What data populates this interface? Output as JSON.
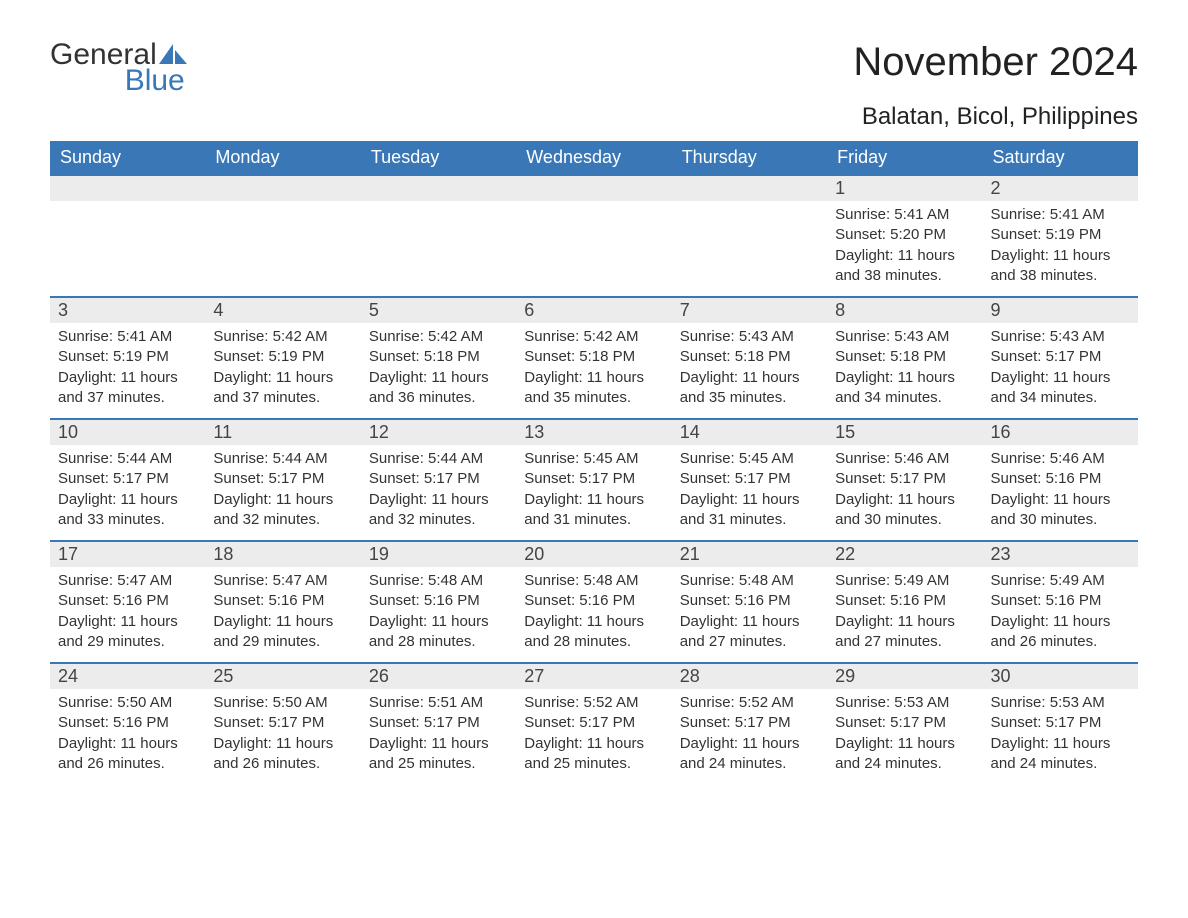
{
  "logo": {
    "word1": "General",
    "word2": "Blue",
    "accent_color": "#3a77b6",
    "text_color": "#333333"
  },
  "title": "November 2024",
  "location": "Balatan, Bicol, Philippines",
  "colors": {
    "header_bg": "#3a77b6",
    "header_text": "#ffffff",
    "daynum_bg": "#ececec",
    "row_border": "#3a77b6",
    "body_text": "#333333",
    "background": "#ffffff"
  },
  "day_headers": [
    "Sunday",
    "Monday",
    "Tuesday",
    "Wednesday",
    "Thursday",
    "Friday",
    "Saturday"
  ],
  "weeks": [
    [
      null,
      null,
      null,
      null,
      null,
      {
        "n": "1",
        "sunrise": "Sunrise: 5:41 AM",
        "sunset": "Sunset: 5:20 PM",
        "daylight": "Daylight: 11 hours and 38 minutes."
      },
      {
        "n": "2",
        "sunrise": "Sunrise: 5:41 AM",
        "sunset": "Sunset: 5:19 PM",
        "daylight": "Daylight: 11 hours and 38 minutes."
      }
    ],
    [
      {
        "n": "3",
        "sunrise": "Sunrise: 5:41 AM",
        "sunset": "Sunset: 5:19 PM",
        "daylight": "Daylight: 11 hours and 37 minutes."
      },
      {
        "n": "4",
        "sunrise": "Sunrise: 5:42 AM",
        "sunset": "Sunset: 5:19 PM",
        "daylight": "Daylight: 11 hours and 37 minutes."
      },
      {
        "n": "5",
        "sunrise": "Sunrise: 5:42 AM",
        "sunset": "Sunset: 5:18 PM",
        "daylight": "Daylight: 11 hours and 36 minutes."
      },
      {
        "n": "6",
        "sunrise": "Sunrise: 5:42 AM",
        "sunset": "Sunset: 5:18 PM",
        "daylight": "Daylight: 11 hours and 35 minutes."
      },
      {
        "n": "7",
        "sunrise": "Sunrise: 5:43 AM",
        "sunset": "Sunset: 5:18 PM",
        "daylight": "Daylight: 11 hours and 35 minutes."
      },
      {
        "n": "8",
        "sunrise": "Sunrise: 5:43 AM",
        "sunset": "Sunset: 5:18 PM",
        "daylight": "Daylight: 11 hours and 34 minutes."
      },
      {
        "n": "9",
        "sunrise": "Sunrise: 5:43 AM",
        "sunset": "Sunset: 5:17 PM",
        "daylight": "Daylight: 11 hours and 34 minutes."
      }
    ],
    [
      {
        "n": "10",
        "sunrise": "Sunrise: 5:44 AM",
        "sunset": "Sunset: 5:17 PM",
        "daylight": "Daylight: 11 hours and 33 minutes."
      },
      {
        "n": "11",
        "sunrise": "Sunrise: 5:44 AM",
        "sunset": "Sunset: 5:17 PM",
        "daylight": "Daylight: 11 hours and 32 minutes."
      },
      {
        "n": "12",
        "sunrise": "Sunrise: 5:44 AM",
        "sunset": "Sunset: 5:17 PM",
        "daylight": "Daylight: 11 hours and 32 minutes."
      },
      {
        "n": "13",
        "sunrise": "Sunrise: 5:45 AM",
        "sunset": "Sunset: 5:17 PM",
        "daylight": "Daylight: 11 hours and 31 minutes."
      },
      {
        "n": "14",
        "sunrise": "Sunrise: 5:45 AM",
        "sunset": "Sunset: 5:17 PM",
        "daylight": "Daylight: 11 hours and 31 minutes."
      },
      {
        "n": "15",
        "sunrise": "Sunrise: 5:46 AM",
        "sunset": "Sunset: 5:17 PM",
        "daylight": "Daylight: 11 hours and 30 minutes."
      },
      {
        "n": "16",
        "sunrise": "Sunrise: 5:46 AM",
        "sunset": "Sunset: 5:16 PM",
        "daylight": "Daylight: 11 hours and 30 minutes."
      }
    ],
    [
      {
        "n": "17",
        "sunrise": "Sunrise: 5:47 AM",
        "sunset": "Sunset: 5:16 PM",
        "daylight": "Daylight: 11 hours and 29 minutes."
      },
      {
        "n": "18",
        "sunrise": "Sunrise: 5:47 AM",
        "sunset": "Sunset: 5:16 PM",
        "daylight": "Daylight: 11 hours and 29 minutes."
      },
      {
        "n": "19",
        "sunrise": "Sunrise: 5:48 AM",
        "sunset": "Sunset: 5:16 PM",
        "daylight": "Daylight: 11 hours and 28 minutes."
      },
      {
        "n": "20",
        "sunrise": "Sunrise: 5:48 AM",
        "sunset": "Sunset: 5:16 PM",
        "daylight": "Daylight: 11 hours and 28 minutes."
      },
      {
        "n": "21",
        "sunrise": "Sunrise: 5:48 AM",
        "sunset": "Sunset: 5:16 PM",
        "daylight": "Daylight: 11 hours and 27 minutes."
      },
      {
        "n": "22",
        "sunrise": "Sunrise: 5:49 AM",
        "sunset": "Sunset: 5:16 PM",
        "daylight": "Daylight: 11 hours and 27 minutes."
      },
      {
        "n": "23",
        "sunrise": "Sunrise: 5:49 AM",
        "sunset": "Sunset: 5:16 PM",
        "daylight": "Daylight: 11 hours and 26 minutes."
      }
    ],
    [
      {
        "n": "24",
        "sunrise": "Sunrise: 5:50 AM",
        "sunset": "Sunset: 5:16 PM",
        "daylight": "Daylight: 11 hours and 26 minutes."
      },
      {
        "n": "25",
        "sunrise": "Sunrise: 5:50 AM",
        "sunset": "Sunset: 5:17 PM",
        "daylight": "Daylight: 11 hours and 26 minutes."
      },
      {
        "n": "26",
        "sunrise": "Sunrise: 5:51 AM",
        "sunset": "Sunset: 5:17 PM",
        "daylight": "Daylight: 11 hours and 25 minutes."
      },
      {
        "n": "27",
        "sunrise": "Sunrise: 5:52 AM",
        "sunset": "Sunset: 5:17 PM",
        "daylight": "Daylight: 11 hours and 25 minutes."
      },
      {
        "n": "28",
        "sunrise": "Sunrise: 5:52 AM",
        "sunset": "Sunset: 5:17 PM",
        "daylight": "Daylight: 11 hours and 24 minutes."
      },
      {
        "n": "29",
        "sunrise": "Sunrise: 5:53 AM",
        "sunset": "Sunset: 5:17 PM",
        "daylight": "Daylight: 11 hours and 24 minutes."
      },
      {
        "n": "30",
        "sunrise": "Sunrise: 5:53 AM",
        "sunset": "Sunset: 5:17 PM",
        "daylight": "Daylight: 11 hours and 24 minutes."
      }
    ]
  ]
}
